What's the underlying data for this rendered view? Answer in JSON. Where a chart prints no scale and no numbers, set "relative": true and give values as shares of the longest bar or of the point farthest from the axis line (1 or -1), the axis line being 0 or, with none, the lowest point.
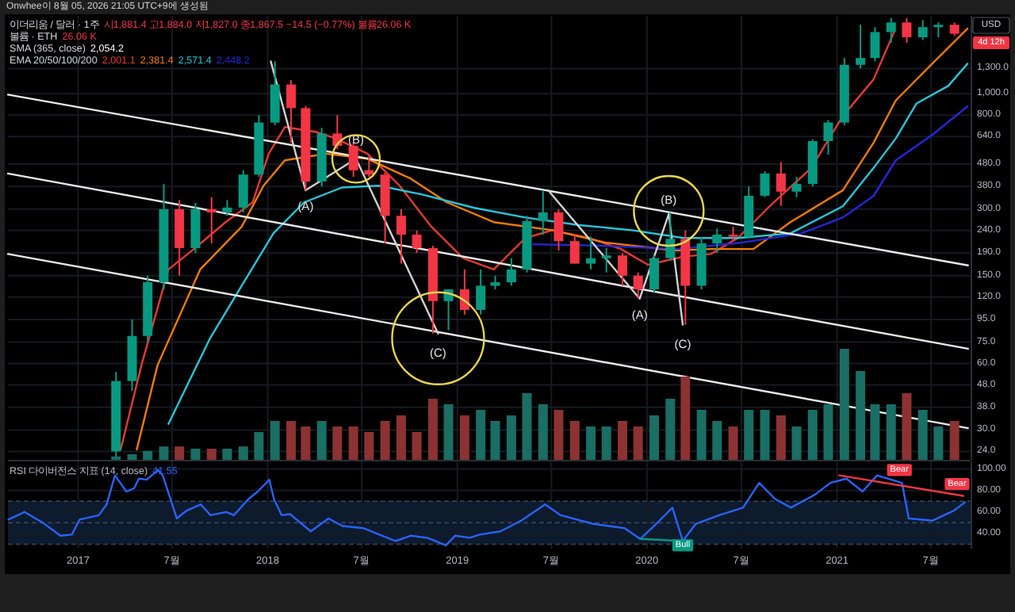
{
  "chart_data": [
    {
      "type": "candlestick",
      "title": "이더리움 / 달러 · 1주",
      "log": "y",
      "grid": true,
      "tick_labels": "y",
      "xlim": [
        "2016-08-19",
        "2021-09-15"
      ],
      "xticks": [
        {
          "value": "2017-01-01",
          "label": null
        },
        {
          "value": "2017-07-01",
          "label": null
        },
        {
          "value": "2018-01-01",
          "label": null
        },
        {
          "value": "2018-07-01",
          "label": null
        },
        {
          "value": "2019-01-01",
          "label": null
        },
        {
          "value": "2019-07-01",
          "label": null
        },
        {
          "value": "2020-01-01",
          "label": null
        },
        {
          "value": "2020-07-01",
          "label": null
        },
        {
          "value": "2021-01-01",
          "label": null
        },
        {
          "value": "2021-07-01",
          "label": null
        }
      ],
      "ylim": [
        22,
        2250
      ],
      "yticks": [
        {
          "value": 1300,
          "label": "1,300.0"
        },
        {
          "value": 1000,
          "label": "1,000.0"
        },
        {
          "value": 800,
          "label": "800.0"
        },
        {
          "value": 640,
          "label": "640.0"
        },
        {
          "value": 480,
          "label": "480.0"
        },
        {
          "value": 380,
          "label": "380.0"
        },
        {
          "value": 300,
          "label": "300.0"
        },
        {
          "value": 240,
          "label": "240.0"
        },
        {
          "value": 190,
          "label": "190.0"
        },
        {
          "value": 150,
          "label": "150.0"
        },
        {
          "value": 120,
          "label": "120.0"
        },
        {
          "value": 95,
          "label": "95.0"
        },
        {
          "value": 75,
          "label": "75.0"
        },
        {
          "value": 60,
          "label": "60.0"
        },
        {
          "value": 48,
          "label": "48.0"
        },
        {
          "value": 38,
          "label": "38.0"
        },
        {
          "value": 30,
          "label": "30.0"
        },
        {
          "value": 24,
          "label": "24.0"
        }
      ],
      "x": [
        "2017-03-15",
        "2017-04-15",
        "2017-05-15",
        "2017-06-15",
        "2017-07-15",
        "2017-08-15",
        "2017-09-15",
        "2017-10-15",
        "2017-11-15",
        "2017-12-15",
        "2018-01-15",
        "2018-02-15",
        "2018-03-15",
        "2018-04-15",
        "2018-05-15",
        "2018-06-15",
        "2018-07-15",
        "2018-08-15",
        "2018-09-15",
        "2018-10-15",
        "2018-11-15",
        "2018-12-15",
        "2019-01-15",
        "2019-02-15",
        "2019-03-15",
        "2019-04-15",
        "2019-05-15",
        "2019-06-15",
        "2019-07-15",
        "2019-08-15",
        "2019-09-15",
        "2019-10-15",
        "2019-11-15",
        "2019-12-15",
        "2020-01-15",
        "2020-02-15",
        "2020-03-15",
        "2020-04-15",
        "2020-05-15",
        "2020-06-15",
        "2020-07-15",
        "2020-08-15",
        "2020-09-15",
        "2020-10-15",
        "2020-11-15",
        "2020-12-15",
        "2021-01-15",
        "2021-02-15",
        "2021-03-15",
        "2021-04-15",
        "2021-05-15",
        "2021-06-15",
        "2021-07-15",
        "2021-08-15"
      ],
      "ohlc": [
        [
          24,
          55,
          22.5,
          50
        ],
        [
          50,
          95,
          45,
          80
        ],
        [
          80,
          150,
          75,
          140
        ],
        [
          140,
          390,
          130,
          300
        ],
        [
          300,
          330,
          150,
          200
        ],
        [
          200,
          320,
          190,
          300
        ],
        [
          300,
          340,
          210,
          290
        ],
        [
          290,
          330,
          280,
          305
        ],
        [
          305,
          450,
          290,
          430
        ],
        [
          430,
          800,
          420,
          740
        ],
        [
          740,
          1400,
          720,
          1100
        ],
        [
          1100,
          1150,
          600,
          860
        ],
        [
          860,
          880,
          365,
          400
        ],
        [
          400,
          700,
          380,
          660
        ],
        [
          660,
          800,
          560,
          580
        ],
        [
          580,
          600,
          420,
          450
        ],
        [
          450,
          520,
          420,
          430
        ],
        [
          430,
          440,
          210,
          280
        ],
        [
          280,
          300,
          170,
          230
        ],
        [
          230,
          240,
          190,
          200
        ],
        [
          200,
          205,
          82,
          115
        ],
        [
          115,
          130,
          85,
          130
        ],
        [
          130,
          160,
          100,
          105
        ],
        [
          105,
          160,
          100,
          135
        ],
        [
          135,
          150,
          130,
          140
        ],
        [
          140,
          180,
          135,
          160
        ],
        [
          160,
          280,
          155,
          265
        ],
        [
          265,
          365,
          230,
          290
        ],
        [
          290,
          300,
          195,
          215
        ],
        [
          215,
          230,
          170,
          170
        ],
        [
          170,
          225,
          160,
          180
        ],
        [
          180,
          200,
          155,
          185
        ],
        [
          185,
          190,
          135,
          150
        ],
        [
          150,
          155,
          118,
          130
        ],
        [
          130,
          185,
          125,
          180
        ],
        [
          180,
          290,
          175,
          220
        ],
        [
          220,
          240,
          90,
          135
        ],
        [
          135,
          225,
          130,
          210
        ],
        [
          210,
          245,
          190,
          230
        ],
        [
          230,
          250,
          215,
          225
        ],
        [
          225,
          380,
          220,
          345
        ],
        [
          345,
          445,
          340,
          435
        ],
        [
          435,
          490,
          310,
          360
        ],
        [
          360,
          420,
          340,
          390
        ],
        [
          390,
          620,
          380,
          610
        ],
        [
          610,
          760,
          530,
          740
        ],
        [
          740,
          1450,
          720,
          1350
        ],
        [
          1350,
          2050,
          1300,
          1450
        ],
        [
          1450,
          2000,
          1400,
          1900
        ],
        [
          1900,
          2200,
          1700,
          2100
        ],
        [
          2100,
          2200,
          1700,
          1800
        ],
        [
          1800,
          2150,
          1750,
          2000
        ],
        [
          2000,
          2100,
          1800,
          2050
        ],
        [
          2050,
          2100,
          1827,
          1867.5
        ]
      ],
      "colors": [
        "#089981",
        "#089981",
        "#089981",
        "#089981",
        "#f23645",
        "#089981",
        "#f23645",
        "#089981",
        "#089981",
        "#089981",
        "#089981",
        "#f23645",
        "#f23645",
        "#089981",
        "#f23645",
        "#f23645",
        "#f23645",
        "#f23645",
        "#f23645",
        "#f23645",
        "#f23645",
        "#089981",
        "#f23645",
        "#089981",
        "#089981",
        "#089981",
        "#089981",
        "#089981",
        "#f23645",
        "#f23645",
        "#089981",
        "#089981",
        "#f23645",
        "#f23645",
        "#089981",
        "#089981",
        "#f23645",
        "#089981",
        "#089981",
        "#f23645",
        "#089981",
        "#089981",
        "#f23645",
        "#089981",
        "#089981",
        "#089981",
        "#089981",
        "#089981",
        "#089981",
        "#089981",
        "#f23645",
        "#089981",
        "#089981",
        "#f23645"
      ],
      "series": [
        {
          "type": "line",
          "color": "#e53935",
          "x": [
            "2017-03-24",
            "2017-05-03",
            "2017-06-24",
            "2017-08-12",
            "2017-10-12",
            "2017-12-03",
            "2018-01-03",
            "2018-02-03",
            "2018-04-03",
            "2018-05-12",
            "2018-07-12",
            "2018-09-12",
            "2018-11-12",
            "2019-01-12",
            "2019-03-12",
            "2019-05-12",
            "2019-07-03",
            "2019-09-12",
            "2019-11-12",
            "2020-01-03",
            "2020-03-12",
            "2020-05-03",
            "2020-06-24",
            "2020-08-24",
            "2020-11-12",
            "2021-01-12",
            "2021-03-12",
            "2021-04-21"
          ],
          "values": [
            24.5,
            59,
            160,
            198,
            262,
            322,
            535,
            706,
            672,
            627,
            535,
            383,
            250,
            180,
            160,
            222,
            241,
            222,
            198,
            168,
            183,
            188,
            222,
            309,
            460,
            792,
            1158,
            1906
          ]
        },
        {
          "type": "line",
          "color": "#f57c00",
          "x": [
            "2017-04-24",
            "2017-06-03",
            "2017-08-24",
            "2017-11-12",
            "2017-12-24",
            "2018-02-03",
            "2018-04-24",
            "2018-07-12",
            "2018-10-03",
            "2018-12-12",
            "2019-03-12",
            "2019-07-03",
            "2019-10-12",
            "2020-02-24",
            "2020-05-03",
            "2020-07-24",
            "2020-10-03",
            "2021-01-12",
            "2021-03-12",
            "2021-04-24",
            "2021-07-03",
            "2021-09-09"
          ],
          "values": [
            24.5,
            59,
            160,
            250,
            383,
            499,
            535,
            507,
            413,
            322,
            262,
            241,
            212,
            195,
            198,
            198,
            262,
            365,
            598,
            931,
            1366,
            1970
          ]
        },
        {
          "type": "line",
          "color": "#26c6da",
          "x": [
            "2017-06-24",
            "2017-09-12",
            "2017-11-12",
            "2018-01-12",
            "2018-03-12",
            "2018-05-24",
            "2018-08-03",
            "2018-10-24",
            "2019-02-03",
            "2019-05-12",
            "2019-08-24",
            "2019-12-03",
            "2020-03-12",
            "2020-06-24",
            "2020-10-03",
            "2021-01-12",
            "2021-03-12",
            "2021-04-24",
            "2021-06-03",
            "2021-08-03",
            "2021-09-09"
          ],
          "values": [
            32,
            78,
            135,
            233,
            322,
            376,
            383,
            350,
            304,
            275,
            254,
            241,
            222,
            222,
            233,
            309,
            460,
            627,
            903,
            1084,
            1366
          ]
        },
        {
          "type": "line",
          "color": "#2626d9",
          "x": [
            "2019-05-27",
            "2019-10-03",
            "2020-03-03",
            "2020-07-03",
            "2020-10-24",
            "2021-01-12",
            "2021-03-12",
            "2021-04-24",
            "2021-07-03",
            "2021-09-09"
          ],
          "values": [
            208,
            205,
            198,
            212,
            233,
            275,
            344,
            499,
            650,
            875
          ]
        },
        {
          "type": "line",
          "color": "#e8e8e8",
          "x": [
            "2016-08-19",
            "2021-09-10"
          ],
          "values": [
            990,
            167
          ]
        },
        {
          "type": "line",
          "color": "#e8e8e8",
          "x": [
            "2016-08-19",
            "2021-09-10"
          ],
          "values": [
            435,
            70
          ]
        },
        {
          "type": "line",
          "color": "#e8e8e8",
          "x": [
            "2016-08-19",
            "2021-09-10"
          ],
          "values": [
            188,
            30.6
          ]
        },
        {
          "type": "line",
          "color": "#d0d0d0",
          "x": [
            "2018-01-07",
            "2018-03-15",
            "2018-06-20",
            "2018-11-25"
          ],
          "values": [
            1400,
            365,
            507,
            82
          ]
        },
        {
          "type": "line",
          "color": "#d0d0d0",
          "x": [
            "2019-06-25",
            "2019-12-18",
            "2020-02-12",
            "2020-03-10"
          ],
          "values": [
            365,
            118,
            285,
            90
          ]
        }
      ],
      "annotations": [
        {
          "text": "(A)",
          "x": "2018-03-15",
          "y": 365
        },
        {
          "text": "(B)",
          "x": "2018-06-20",
          "y": 507
        },
        {
          "text": "(C)",
          "x": "2018-11-25",
          "y": 82
        },
        {
          "text": "(A)",
          "x": "2019-12-18",
          "y": 118
        },
        {
          "text": "(B)",
          "x": "2020-02-12",
          "y": 285
        },
        {
          "text": "(C)",
          "x": "2020-03-10",
          "y": 90
        },
        "Onwhee이 8월 05, 2026 21:05 UTC+9에 생성됨",
        "시1,881.4 고1,884.0 저1,827.0 종1,867.5 −14.5 (−0.77%) 볼륨26.06 K",
        "볼륨 · ETH",
        "26.06 K",
        "SMA (365, close)",
        "2,054.2",
        "EMA 20/50/100/200",
        "2,001.1",
        "2,381.4",
        "2,571.4",
        "2,448.2",
        "USD",
        "4d 12h"
      ]
    },
    {
      "type": "bar",
      "relative": true,
      "tick_labels": false,
      "xlim": [
        "2016-08-19",
        "2021-09-15"
      ],
      "x": [
        "2017-03-15",
        "2017-04-15",
        "2017-05-15",
        "2017-06-15",
        "2017-07-15",
        "2017-08-15",
        "2017-09-15",
        "2017-10-15",
        "2017-11-15",
        "2017-12-15",
        "2018-01-15",
        "2018-02-15",
        "2018-03-15",
        "2018-04-15",
        "2018-05-15",
        "2018-06-15",
        "2018-07-15",
        "2018-08-15",
        "2018-09-15",
        "2018-10-15",
        "2018-11-15",
        "2018-12-15",
        "2019-01-15",
        "2019-02-15",
        "2019-03-15",
        "2019-04-15",
        "2019-05-15",
        "2019-06-15",
        "2019-07-15",
        "2019-08-15",
        "2019-09-15",
        "2019-10-15",
        "2019-11-15",
        "2019-12-15",
        "2020-01-15",
        "2020-02-15",
        "2020-03-15",
        "2020-04-15",
        "2020-05-15",
        "2020-06-15",
        "2020-07-15",
        "2020-08-15",
        "2020-09-15",
        "2020-10-15",
        "2020-11-15",
        "2020-12-15",
        "2021-01-15",
        "2021-02-15",
        "2021-03-15",
        "2021-04-15",
        "2021-05-15",
        "2021-06-15",
        "2021-07-15",
        "2021-08-15"
      ],
      "values": [
        0.03,
        0.05,
        0.08,
        0.12,
        0.12,
        0.1,
        0.1,
        0.1,
        0.12,
        0.25,
        0.35,
        0.35,
        0.3,
        0.35,
        0.3,
        0.3,
        0.25,
        0.35,
        0.4,
        0.25,
        0.55,
        0.5,
        0.4,
        0.45,
        0.35,
        0.4,
        0.6,
        0.5,
        0.45,
        0.35,
        0.3,
        0.3,
        0.35,
        0.3,
        0.4,
        0.55,
        0.75,
        0.45,
        0.35,
        0.3,
        0.45,
        0.45,
        0.4,
        0.3,
        0.45,
        0.5,
        1,
        0.8,
        0.5,
        0.5,
        0.6,
        0.45,
        0.3,
        0.35
      ],
      "colors": [
        "#1a6e64",
        "#1a6e64",
        "#1a6e64",
        "#1a6e64",
        "#8c3232",
        "#1a6e64",
        "#8c3232",
        "#1a6e64",
        "#1a6e64",
        "#1a6e64",
        "#1a6e64",
        "#8c3232",
        "#8c3232",
        "#1a6e64",
        "#8c3232",
        "#8c3232",
        "#8c3232",
        "#8c3232",
        "#8c3232",
        "#8c3232",
        "#8c3232",
        "#1a6e64",
        "#8c3232",
        "#1a6e64",
        "#1a6e64",
        "#1a6e64",
        "#1a6e64",
        "#1a6e64",
        "#8c3232",
        "#8c3232",
        "#1a6e64",
        "#1a6e64",
        "#8c3232",
        "#8c3232",
        "#1a6e64",
        "#1a6e64",
        "#8c3232",
        "#1a6e64",
        "#1a6e64",
        "#8c3232",
        "#1a6e64",
        "#1a6e64",
        "#8c3232",
        "#1a6e64",
        "#1a6e64",
        "#1a6e64",
        "#1a6e64",
        "#1a6e64",
        "#1a6e64",
        "#1a6e64",
        "#8c3232",
        "#1a6e64",
        "#1a6e64",
        "#8c3232"
      ]
    },
    {
      "type": "line",
      "grid": true,
      "xlim": [
        "2016-08-19",
        "2021-09-15"
      ],
      "xticks": [
        {
          "value": "2017-01-01",
          "label": "2017"
        },
        {
          "value": "2017-07-01",
          "label": "7월"
        },
        {
          "value": "2018-01-01",
          "label": "2018"
        },
        {
          "value": "2018-07-01",
          "label": "7월"
        },
        {
          "value": "2019-01-01",
          "label": "2019"
        },
        {
          "value": "2019-07-01",
          "label": "7월"
        },
        {
          "value": "2020-01-01",
          "label": "2020"
        },
        {
          "value": "2020-07-01",
          "label": "7월"
        },
        {
          "value": "2021-01-01",
          "label": "2021"
        },
        {
          "value": "2021-07-01",
          "label": "7월"
        }
      ],
      "ylim": [
        26,
        107
      ],
      "yticks": [
        {
          "value": 100,
          "label": "100.00"
        },
        {
          "value": 80,
          "label": "80.00"
        },
        {
          "value": 60,
          "label": "60.00"
        },
        {
          "value": 40,
          "label": "40.00"
        }
      ],
      "bands": [
        {
          "axis": "y",
          "from": 30,
          "to": 70,
          "color": "#0c1b2e"
        }
      ],
      "ref_lines": [
        {
          "axis": "y",
          "value": 70,
          "color": "#3a4656",
          "line_style": "dashed"
        },
        {
          "axis": "y",
          "value": 50,
          "color": "#3a4656",
          "line_style": "dashed"
        },
        {
          "axis": "y",
          "value": 30,
          "color": "#3a4656",
          "line_style": "dashed"
        }
      ],
      "series": [
        {
          "color": "#2962ff",
          "x": [
            "2016-08-20",
            "2016-09-20",
            "2016-10-25",
            "2016-11-28",
            "2016-12-20",
            "2017-01-04",
            "2017-02-10",
            "2017-02-25",
            "2017-03-13",
            "2017-04-04",
            "2017-04-19",
            "2017-04-28",
            "2017-05-13",
            "2017-06-04",
            "2017-06-13",
            "2017-07-10",
            "2017-07-28",
            "2017-08-25",
            "2017-09-13",
            "2017-10-13",
            "2017-10-28",
            "2017-11-25",
            "2017-12-13",
            "2018-01-04",
            "2018-01-13",
            "2018-01-28",
            "2018-02-13",
            "2018-03-25",
            "2018-04-28",
            "2018-05-25",
            "2018-07-04",
            "2018-08-04",
            "2018-09-04",
            "2018-10-04",
            "2018-11-04",
            "2018-12-10",
            "2018-12-28",
            "2019-01-25",
            "2019-02-13",
            "2019-03-25",
            "2019-05-04",
            "2019-06-19",
            "2019-07-19",
            "2019-09-19",
            "2019-11-19",
            "2019-12-19",
            "2020-01-19",
            "2020-02-19",
            "2020-03-10",
            "2020-04-04",
            "2020-05-19",
            "2020-07-04",
            "2020-08-04",
            "2020-09-04",
            "2020-10-04",
            "2020-11-19",
            "2020-12-19",
            "2021-01-19",
            "2021-02-19",
            "2021-03-19",
            "2021-05-06",
            "2021-05-19",
            "2021-07-04",
            "2021-08-13",
            "2021-09-04"
          ],
          "values": [
            53,
            60,
            50,
            38,
            39,
            53,
            57,
            67,
            94,
            79,
            82,
            91,
            90,
            99,
            94,
            54,
            61,
            67,
            57,
            60,
            57,
            72,
            79,
            90,
            72,
            57,
            58,
            42,
            54,
            47,
            45,
            39,
            33,
            38,
            36,
            29,
            38,
            36,
            39,
            42,
            52,
            67,
            57,
            49,
            45,
            35,
            49,
            64,
            33,
            49,
            57,
            64,
            87,
            72,
            64,
            76,
            87,
            91,
            79,
            94,
            87,
            54,
            52,
            61,
            69
          ]
        },
        {
          "color": "#089981",
          "x": [
            "2019-12-19",
            "2020-03-10"
          ],
          "values": [
            35,
            33
          ]
        },
        {
          "color": "#f23645",
          "x": [
            "2021-01-05",
            "2021-09-01"
          ],
          "values": [
            94,
            75
          ]
        }
      ],
      "annotations": [
        "RSI 다이버전스 지표 (14, close)",
        "41.55",
        {
          "text": "Bull",
          "x": "2020-03-10",
          "y": 29
        },
        {
          "text": "Bear",
          "x": "2021-05-01",
          "y": 99
        },
        {
          "text": "Bear",
          "x": "2021-08-20",
          "y": 86
        }
      ]
    }
  ]
}
